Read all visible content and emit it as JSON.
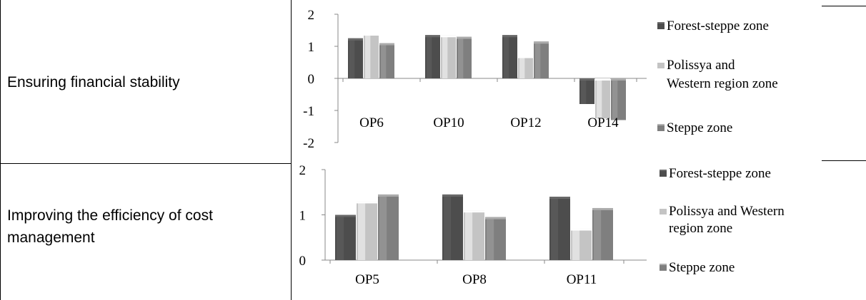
{
  "rows": [
    {
      "label": "Ensuring financial stability"
    },
    {
      "label": "Improving the efficiency of cost management"
    }
  ],
  "colors": {
    "forest_steppe": "#4d4d4d",
    "polissya": "#c4c4c4",
    "steppe": "#7f7f7f"
  },
  "chart_data": [
    {
      "type": "bar",
      "categories": [
        "OP6",
        "OP10",
        "OP12",
        "OP14"
      ],
      "series": [
        {
          "name": "Forest-steppe zone",
          "values": [
            1.25,
            1.35,
            1.35,
            -0.8
          ]
        },
        {
          "name": "Polissya and Western region zone",
          "values": [
            1.4,
            1.35,
            0.7,
            -1.25
          ]
        },
        {
          "name": "Steppe zone",
          "values": [
            1.1,
            1.3,
            1.15,
            -1.3
          ]
        }
      ],
      "y_ticks": [
        "2",
        "1",
        "0",
        "-1",
        "-2"
      ],
      "ylim": [
        -2,
        2
      ],
      "legend_lines": [
        [
          "Forest-steppe zone"
        ],
        [
          "Polissya and",
          "Western region zone"
        ],
        [
          "Steppe zone"
        ]
      ],
      "legend": "right",
      "grid": false
    },
    {
      "type": "bar",
      "categories": [
        "OP5",
        "OP8",
        "OP11"
      ],
      "series": [
        {
          "name": "Forest-steppe zone",
          "values": [
            1.0,
            1.45,
            1.4
          ]
        },
        {
          "name": "Polissya and Western region zone",
          "values": [
            1.3,
            1.1,
            0.7
          ]
        },
        {
          "name": "Steppe zone",
          "values": [
            1.45,
            0.95,
            1.15
          ]
        }
      ],
      "y_ticks": [
        "2",
        "1",
        "0"
      ],
      "ylim": [
        0,
        2
      ],
      "legend_lines": [
        [
          "Forest-steppe zone"
        ],
        [
          "Polissya and Western",
          "region zone"
        ],
        [
          "Steppe zone"
        ]
      ],
      "legend": "right",
      "grid": false
    }
  ]
}
